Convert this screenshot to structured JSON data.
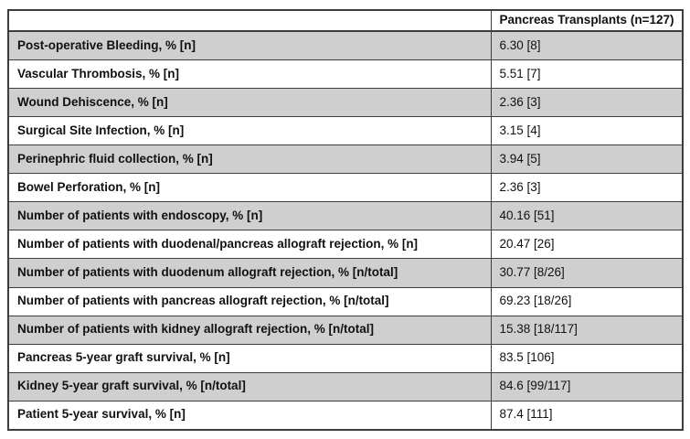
{
  "colors": {
    "row_shaded": "#cfcfcf",
    "row_plain": "#ffffff",
    "border": "#3d3d3d",
    "text": "#111111"
  },
  "header": {
    "col1": "",
    "col2": "Pancreas Transplants (n=127)"
  },
  "rows": [
    {
      "label": "Post-operative Bleeding, % [n]",
      "value": "6.30 [8]",
      "shaded": true
    },
    {
      "label": "Vascular Thrombosis, % [n]",
      "value": "5.51 [7]",
      "shaded": false
    },
    {
      "label": "Wound Dehiscence, % [n]",
      "value": "2.36 [3]",
      "shaded": true
    },
    {
      "label": "Surgical Site Infection, % [n]",
      "value": "3.15 [4]",
      "shaded": false
    },
    {
      "label": "Perinephric fluid collection, % [n]",
      "value": "3.94 [5]",
      "shaded": true
    },
    {
      "label": "Bowel Perforation, % [n]",
      "value": "2.36 [3]",
      "shaded": false
    },
    {
      "label": "Number of patients with endoscopy, % [n]",
      "value": "40.16 [51]",
      "shaded": true
    },
    {
      "label": "Number of patients with duodenal/pancreas allograft rejection, % [n]",
      "value": "20.47 [26]",
      "shaded": false
    },
    {
      "label": "Number of patients with duodenum allograft rejection, % [n/total]",
      "value": "30.77 [8/26]",
      "shaded": true
    },
    {
      "label": "Number of patients with pancreas allograft rejection, % [n/total]",
      "value": "69.23 [18/26]",
      "shaded": false
    },
    {
      "label": "Number of patients with kidney allograft rejection, % [n/total]",
      "value": "15.38 [18/117]",
      "shaded": true
    },
    {
      "label": "Pancreas 5-year graft survival, % [n]",
      "value": "83.5 [106]",
      "shaded": false
    },
    {
      "label": "Kidney 5-year graft survival, % [n/total]",
      "value": "84.6 [99/117]",
      "shaded": true
    },
    {
      "label": "Patient 5-year survival, % [n]",
      "value": "87.4 [111]",
      "shaded": false
    }
  ]
}
